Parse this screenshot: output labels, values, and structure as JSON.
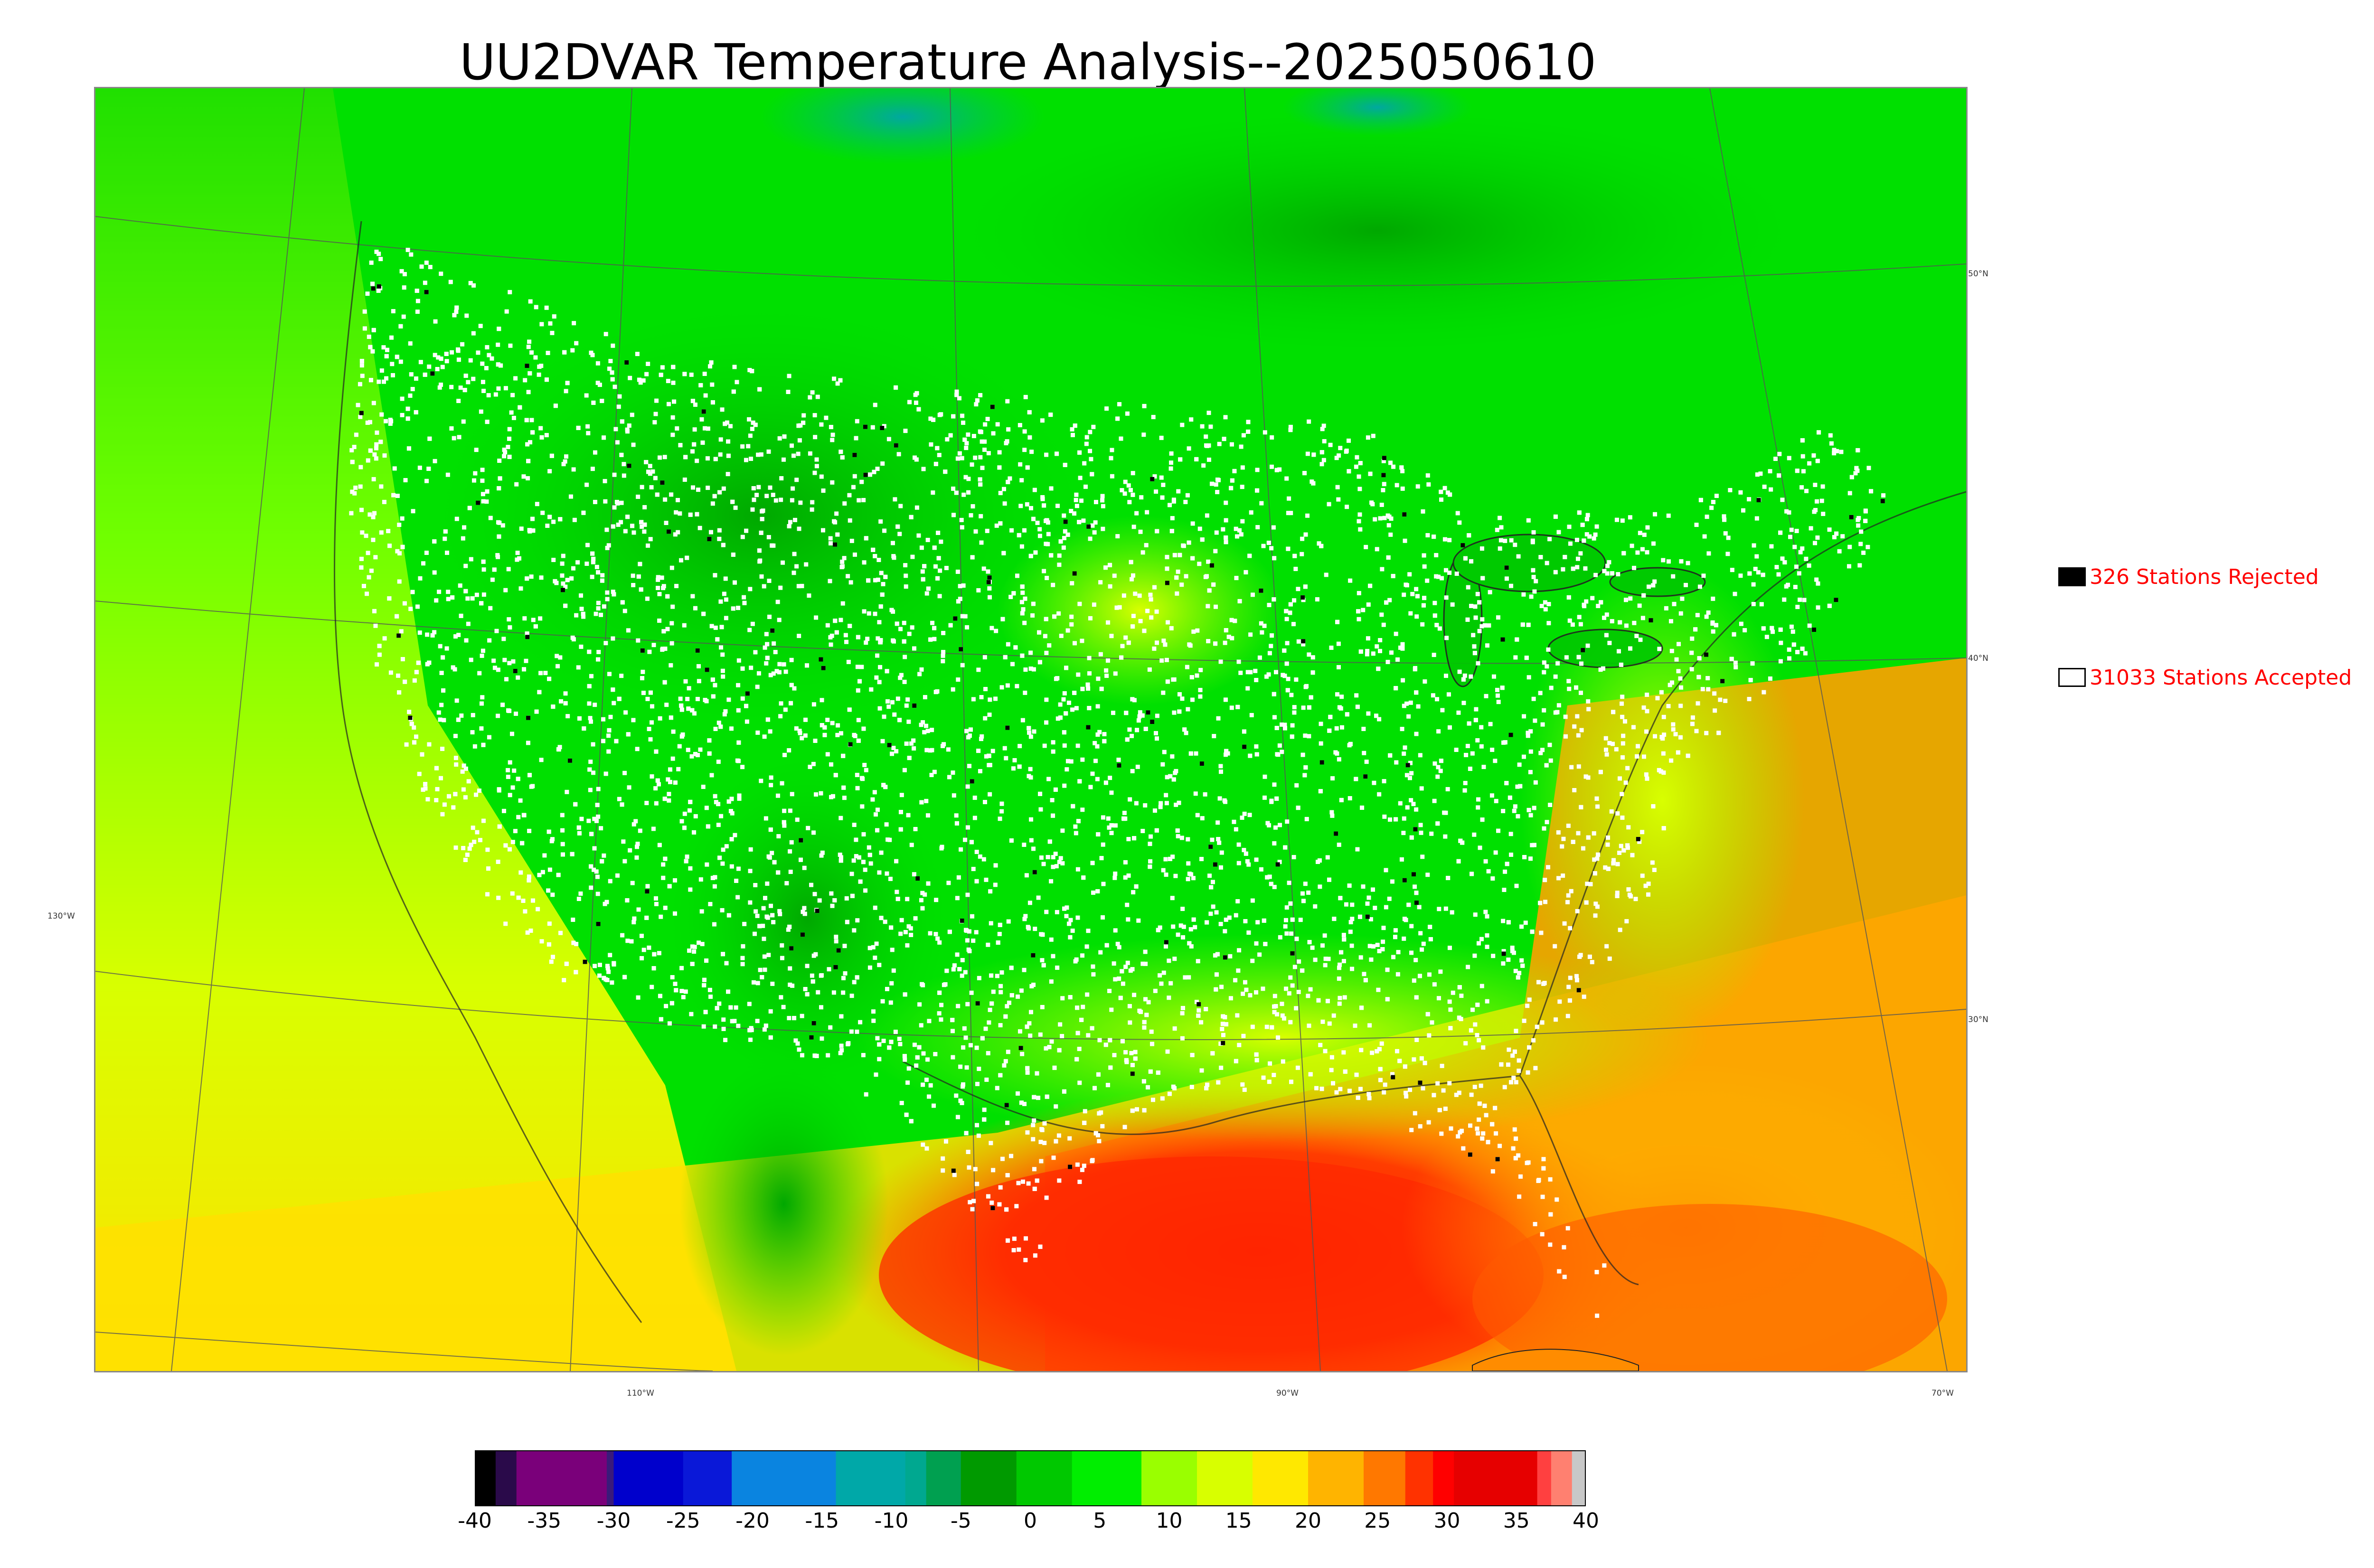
{
  "title": "UU2DVAR Temperature Analysis--2025050610",
  "map": {
    "latitude_labels": [
      "50°N",
      "40°N",
      "30°N"
    ],
    "longitude_labels": [
      "130°W",
      "110°W",
      "90°W",
      "70°W"
    ]
  },
  "legend": {
    "rejected": {
      "label": "326 Stations Rejected",
      "color": "#000000"
    },
    "accepted": {
      "label": "31033 Stations Accepted",
      "color": "#ffffff"
    }
  },
  "colorbar": {
    "min": -40,
    "max": 40,
    "tick_labels": [
      "-40",
      "-35",
      "-30",
      "-25",
      "-20",
      "-15",
      "-10",
      "-5",
      "0",
      "5",
      "10",
      "15",
      "20",
      "25",
      "30",
      "35",
      "40"
    ],
    "bands": [
      {
        "from": -40,
        "to": -38.5,
        "color": "#000000"
      },
      {
        "from": -38.5,
        "to": -37,
        "color": "#2a0a4a"
      },
      {
        "from": -37,
        "to": -30.5,
        "color": "#7a007a"
      },
      {
        "from": -30.5,
        "to": -30,
        "color": "#3a1a7a"
      },
      {
        "from": -30,
        "to": -25,
        "color": "#0000cc"
      },
      {
        "from": -25,
        "to": -21.5,
        "color": "#0a18d8"
      },
      {
        "from": -21.5,
        "to": -14,
        "color": "#0a84e0"
      },
      {
        "from": -14,
        "to": -9,
        "color": "#00a8a8"
      },
      {
        "from": -9,
        "to": -7.5,
        "color": "#00a890"
      },
      {
        "from": -7.5,
        "to": -5,
        "color": "#00a050"
      },
      {
        "from": -5,
        "to": -1,
        "color": "#009a00"
      },
      {
        "from": -1,
        "to": 3,
        "color": "#00c800"
      },
      {
        "from": 3,
        "to": 8,
        "color": "#00ee00"
      },
      {
        "from": 8,
        "to": 12,
        "color": "#9aff00"
      },
      {
        "from": 12,
        "to": 16,
        "color": "#d8ff00"
      },
      {
        "from": 16,
        "to": 20,
        "color": "#ffe800"
      },
      {
        "from": 20,
        "to": 24,
        "color": "#ffb400"
      },
      {
        "from": 24,
        "to": 27,
        "color": "#ff7800"
      },
      {
        "from": 27,
        "to": 29,
        "color": "#ff3200"
      },
      {
        "from": 29,
        "to": 30.5,
        "color": "#ff0000"
      },
      {
        "from": 30.5,
        "to": 36.5,
        "color": "#e60000"
      },
      {
        "from": 36.5,
        "to": 37.5,
        "color": "#ff4040"
      },
      {
        "from": 37.5,
        "to": 39,
        "color": "#ff8070"
      },
      {
        "from": 39,
        "to": 40,
        "color": "#c8c8c8"
      }
    ]
  }
}
